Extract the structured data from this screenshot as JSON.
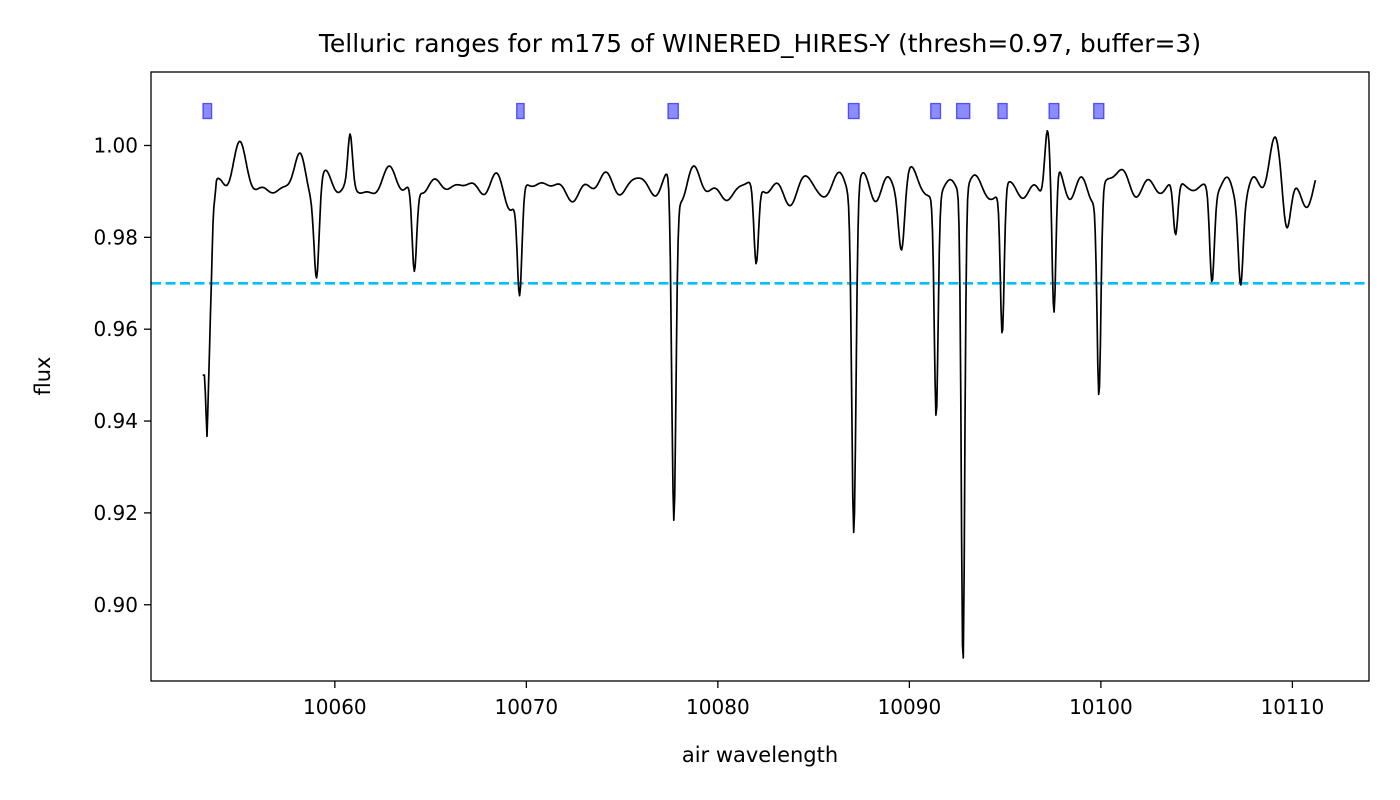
{
  "chart_data": {
    "type": "line",
    "title": "Telluric ranges for m175 of WINERED_HIRES-Y (thresh=0.97, buffer=3)",
    "xlabel": "air wavelength",
    "ylabel": "flux",
    "xlim": [
      10050.4,
      10114.0
    ],
    "ylim": [
      0.8834,
      1.016
    ],
    "x_ticks": [
      10060,
      10070,
      10080,
      10090,
      10100,
      10110
    ],
    "y_ticks": [
      0.9,
      0.92,
      0.94,
      0.96,
      0.98,
      1.0
    ],
    "y_tick_decimals": 2,
    "grid": false,
    "legend": "none",
    "threshold": {
      "value": 0.97,
      "color": "#00bfff",
      "style": "dashed"
    },
    "telluric_ranges": {
      "marker_y": 1.0075,
      "color": "#0000ff",
      "ranges": [
        [
          10053.22,
          10053.46
        ],
        [
          10069.6,
          10069.78
        ],
        [
          10077.5,
          10077.83
        ],
        [
          10086.92,
          10087.27
        ],
        [
          10091.22,
          10091.52
        ],
        [
          10092.57,
          10093.05
        ],
        [
          10094.73,
          10095.0
        ],
        [
          10097.4,
          10097.7
        ],
        [
          10099.73,
          10100.05
        ]
      ]
    },
    "series": [
      {
        "color": "#000000",
        "baseline": 0.991,
        "ripple": 0.0035,
        "ripple_seed": 7,
        "x_start": 10053.1,
        "x_end": 10111.2,
        "points": 1300,
        "edge_profile": [
          [
            10053.1,
            0.95
          ],
          [
            10053.2,
            0.95
          ],
          [
            10053.33,
            0.936
          ],
          [
            10053.45,
            0.955
          ],
          [
            10053.65,
            0.985
          ],
          [
            10053.9,
            0.996
          ]
        ],
        "features": [
          {
            "center": 10055.0,
            "depth": -0.008,
            "width": 0.35
          },
          {
            "center": 10058.2,
            "depth": -0.008,
            "width": 0.3
          },
          {
            "center": 10059.05,
            "depth": 0.019,
            "width": 0.13
          },
          {
            "center": 10060.8,
            "depth": -0.011,
            "width": 0.12
          },
          {
            "center": 10064.15,
            "depth": 0.019,
            "width": 0.12
          },
          {
            "center": 10069.65,
            "depth": 0.023,
            "width": 0.12
          },
          {
            "center": 10077.7,
            "depth": 0.073,
            "width": 0.11
          },
          {
            "center": 10082.0,
            "depth": 0.018,
            "width": 0.12
          },
          {
            "center": 10087.1,
            "depth": 0.074,
            "width": 0.11
          },
          {
            "center": 10089.6,
            "depth": 0.014,
            "width": 0.16
          },
          {
            "center": 10091.4,
            "depth": 0.048,
            "width": 0.1
          },
          {
            "center": 10092.8,
            "depth": 0.103,
            "width": 0.09
          },
          {
            "center": 10094.85,
            "depth": 0.032,
            "width": 0.1
          },
          {
            "center": 10097.2,
            "depth": -0.014,
            "width": 0.14
          },
          {
            "center": 10097.55,
            "depth": 0.031,
            "width": 0.1
          },
          {
            "center": 10099.9,
            "depth": 0.044,
            "width": 0.1
          },
          {
            "center": 10103.9,
            "depth": 0.012,
            "width": 0.12
          },
          {
            "center": 10105.8,
            "depth": 0.02,
            "width": 0.12
          },
          {
            "center": 10107.3,
            "depth": 0.016,
            "width": 0.12
          },
          {
            "center": 10109.1,
            "depth": -0.009,
            "width": 0.3
          },
          {
            "center": 10109.7,
            "depth": 0.009,
            "width": 0.2
          }
        ]
      }
    ]
  }
}
